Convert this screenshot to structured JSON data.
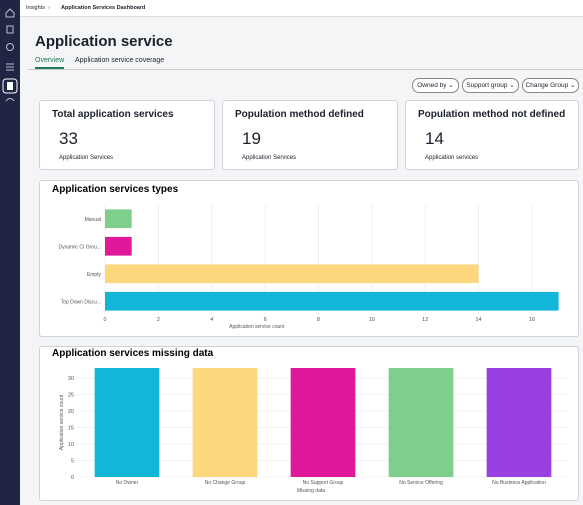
{
  "breadcrumb": {
    "root": "Insights",
    "current": "Application Services Dashboard"
  },
  "header": {
    "title": "Application service"
  },
  "tabs": [
    "Overview",
    "Application service coverage"
  ],
  "filters": [
    "Owned by",
    "Support group",
    "Change Group"
  ],
  "cards": [
    {
      "title": "Total application services",
      "value": 33,
      "caption": "Application Services"
    },
    {
      "title": "Population method defined",
      "value": 19,
      "caption": "Application Services"
    },
    {
      "title": "Population method not defined",
      "value": 14,
      "caption": "Application services"
    }
  ],
  "chart_data": [
    {
      "type": "bar",
      "orientation": "horizontal",
      "title": "Application services types",
      "categories": [
        "Manual",
        "Dynamic CI Grou...",
        "Empty",
        "Top Down Discu..."
      ],
      "values": [
        1,
        1,
        14,
        17
      ],
      "colors": [
        "#7fcf8c",
        "#e0199a",
        "#fdd77e",
        "#13b5d9"
      ],
      "x_label": "Application service count",
      "xlim": [
        0,
        17
      ],
      "xticks": [
        0,
        2,
        4,
        6,
        8,
        10,
        12,
        14,
        16
      ],
      "grid": true
    },
    {
      "type": "bar",
      "orientation": "vertical",
      "title": "Application services missing data",
      "categories": [
        "No Owner",
        "No Change Group",
        "No Support Group",
        "No Service Offering",
        "No Business Application"
      ],
      "values": [
        33,
        33,
        33,
        33,
        33
      ],
      "colors": [
        "#13b5d9",
        "#fdd77e",
        "#e0199a",
        "#7fcf8c",
        "#9a3fe0"
      ],
      "x_label": "Missing data",
      "y_label": "Application service count",
      "ylim": [
        0,
        33
      ],
      "yticks": [
        0,
        5,
        10,
        15,
        20,
        25,
        30
      ],
      "grid": true
    }
  ]
}
